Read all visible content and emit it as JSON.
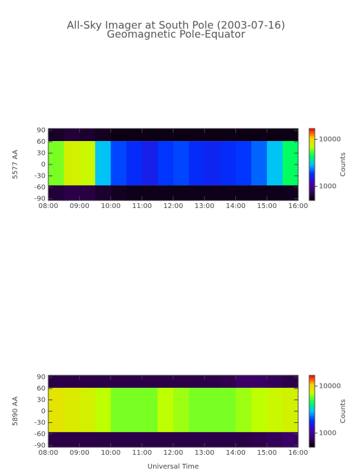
{
  "chart_data": [
    {
      "type": "heatmap",
      "title": "All-Sky Imager at South Pole (2003-07-16)",
      "subtitle": "Geomagnetic Pole-Equator",
      "ylabel": "5577 AA",
      "clabel": "Counts",
      "x": [
        8,
        8.5,
        9,
        9.5,
        10,
        10.5,
        11,
        11.5,
        12,
        12.5,
        13,
        13.5,
        14,
        14.5,
        15,
        15.5,
        16
      ],
      "y": [
        -95,
        -55,
        62,
        95
      ],
      "z": [
        [
          650,
          700,
          680,
          620,
          580,
          560,
          560,
          560,
          560,
          560,
          560,
          560,
          560,
          560,
          560,
          570
        ],
        [
          6000,
          8000,
          7500,
          3000,
          2000,
          1800,
          1600,
          1900,
          2000,
          1800,
          1700,
          1800,
          1900,
          2200,
          3000,
          4500
        ],
        [
          600,
          650,
          620,
          580,
          550,
          550,
          550,
          550,
          550,
          550,
          550,
          550,
          550,
          550,
          550,
          550
        ]
      ],
      "xlim": [
        8,
        16
      ],
      "xticks": [
        {
          "value": 8,
          "label": "08:00"
        },
        {
          "value": 9,
          "label": "09:00"
        },
        {
          "value": 10,
          "label": "10:00"
        },
        {
          "value": 11,
          "label": "11:00"
        },
        {
          "value": 12,
          "label": "12:00"
        },
        {
          "value": 13,
          "label": "13:00"
        },
        {
          "value": 14,
          "label": "14:00"
        },
        {
          "value": 15,
          "label": "15:00"
        },
        {
          "value": 16,
          "label": "16:00"
        }
      ],
      "ylim": [
        -95,
        95
      ],
      "yticks": [
        -90,
        -60,
        -30,
        0,
        30,
        60,
        90
      ],
      "clim": [
        500,
        17000
      ],
      "cticks": [
        1000,
        10000
      ],
      "log_color": true,
      "colormap": [
        "#000000",
        "#3a0060",
        "#4000c0",
        "#0030ff",
        "#00c0ff",
        "#00ff60",
        "#c0ff00",
        "#ffd000",
        "#ff0000"
      ]
    },
    {
      "type": "heatmap",
      "ylabel": "5890 AA",
      "clabel": "Counts",
      "xlabel": "Universal Time",
      "x": [
        8,
        8.5,
        9,
        9.5,
        10,
        10.5,
        11,
        11.5,
        12,
        12.5,
        13,
        13.5,
        14,
        14.5,
        15,
        15.5,
        16
      ],
      "y": [
        -95,
        -55,
        62,
        95
      ],
      "z": [
        [
          700,
          700,
          700,
          700,
          700,
          700,
          700,
          700,
          700,
          700,
          700,
          700,
          700,
          720,
          750,
          800
        ],
        [
          9000,
          8500,
          8000,
          7000,
          6000,
          6000,
          6000,
          7000,
          6500,
          6000,
          6000,
          6000,
          6500,
          7000,
          7500,
          8000
        ],
        [
          700,
          700,
          700,
          700,
          700,
          700,
          700,
          700,
          700,
          700,
          700,
          720,
          800,
          800,
          750,
          700
        ]
      ],
      "xlim": [
        8,
        16
      ],
      "xticks": [
        {
          "value": 8,
          "label": "08:00"
        },
        {
          "value": 9,
          "label": "09:00"
        },
        {
          "value": 10,
          "label": "10:00"
        },
        {
          "value": 11,
          "label": "11:00"
        },
        {
          "value": 12,
          "label": "12:00"
        },
        {
          "value": 13,
          "label": "13:00"
        },
        {
          "value": 14,
          "label": "14:00"
        },
        {
          "value": 15,
          "label": "15:00"
        },
        {
          "value": 16,
          "label": "16:00"
        }
      ],
      "ylim": [
        -95,
        95
      ],
      "yticks": [
        -90,
        -60,
        -30,
        0,
        30,
        60,
        90
      ],
      "clim": [
        500,
        17000
      ],
      "cticks": [
        1000,
        10000
      ],
      "log_color": true,
      "colormap": [
        "#000000",
        "#3a0060",
        "#4000c0",
        "#0030ff",
        "#00c0ff",
        "#00ff60",
        "#c0ff00",
        "#ffd000",
        "#ff0000"
      ]
    }
  ]
}
